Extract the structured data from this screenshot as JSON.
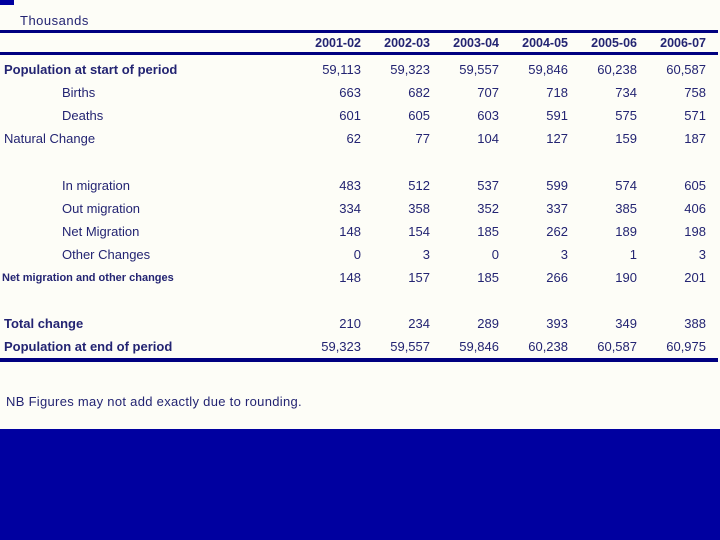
{
  "slide": {
    "unit_label": "Thousands",
    "footnote": "NB Figures may not add exactly due to rounding.",
    "colors": {
      "background": "#0000A0",
      "panel": "#FDFDF7",
      "rule": "#000080",
      "text": "#232472"
    }
  },
  "chart_data": {
    "type": "table",
    "title": "Thousands",
    "columns": [
      "2001-02",
      "2002-03",
      "2003-04",
      "2004-05",
      "2005-06",
      "2006-07"
    ],
    "rows": [
      {
        "label": "Population at start of period",
        "emphasis": "bold",
        "indent": false,
        "values": [
          "59,113",
          "59,323",
          "59,557",
          "59,846",
          "60,238",
          "60,587"
        ]
      },
      {
        "label": "Births",
        "emphasis": "normal",
        "indent": true,
        "values": [
          "663",
          "682",
          "707",
          "718",
          "734",
          "758"
        ]
      },
      {
        "label": "Deaths",
        "emphasis": "normal",
        "indent": true,
        "values": [
          "601",
          "605",
          "603",
          "591",
          "575",
          "571"
        ]
      },
      {
        "label": "Natural Change",
        "emphasis": "normal",
        "indent": false,
        "values": [
          "62",
          "77",
          "104",
          "127",
          "159",
          "187"
        ],
        "spacer_after": 24
      },
      {
        "label": "In migration",
        "emphasis": "normal",
        "indent": true,
        "values": [
          "483",
          "512",
          "537",
          "599",
          "574",
          "605"
        ]
      },
      {
        "label": "Out migration",
        "emphasis": "normal",
        "indent": true,
        "values": [
          "334",
          "358",
          "352",
          "337",
          "385",
          "406"
        ]
      },
      {
        "label": "Net Migration",
        "emphasis": "normal",
        "indent": true,
        "values": [
          "148",
          "154",
          "185",
          "262",
          "189",
          "198"
        ]
      },
      {
        "label": "Other Changes",
        "emphasis": "normal",
        "indent": true,
        "values": [
          "0",
          "3",
          "0",
          "3",
          "1",
          "3"
        ]
      },
      {
        "label": "Net migration and other changes",
        "emphasis": "small",
        "indent": false,
        "values": [
          "148",
          "157",
          "185",
          "266",
          "190",
          "201"
        ],
        "spacer_after": 23
      },
      {
        "label": "Total change",
        "emphasis": "bold",
        "indent": false,
        "values": [
          "210",
          "234",
          "289",
          "393",
          "349",
          "388"
        ]
      },
      {
        "label": "Population at end of period",
        "emphasis": "bold",
        "indent": false,
        "values": [
          "59,323",
          "59,557",
          "59,846",
          "60,238",
          "60,587",
          "60,975"
        ]
      }
    ]
  }
}
